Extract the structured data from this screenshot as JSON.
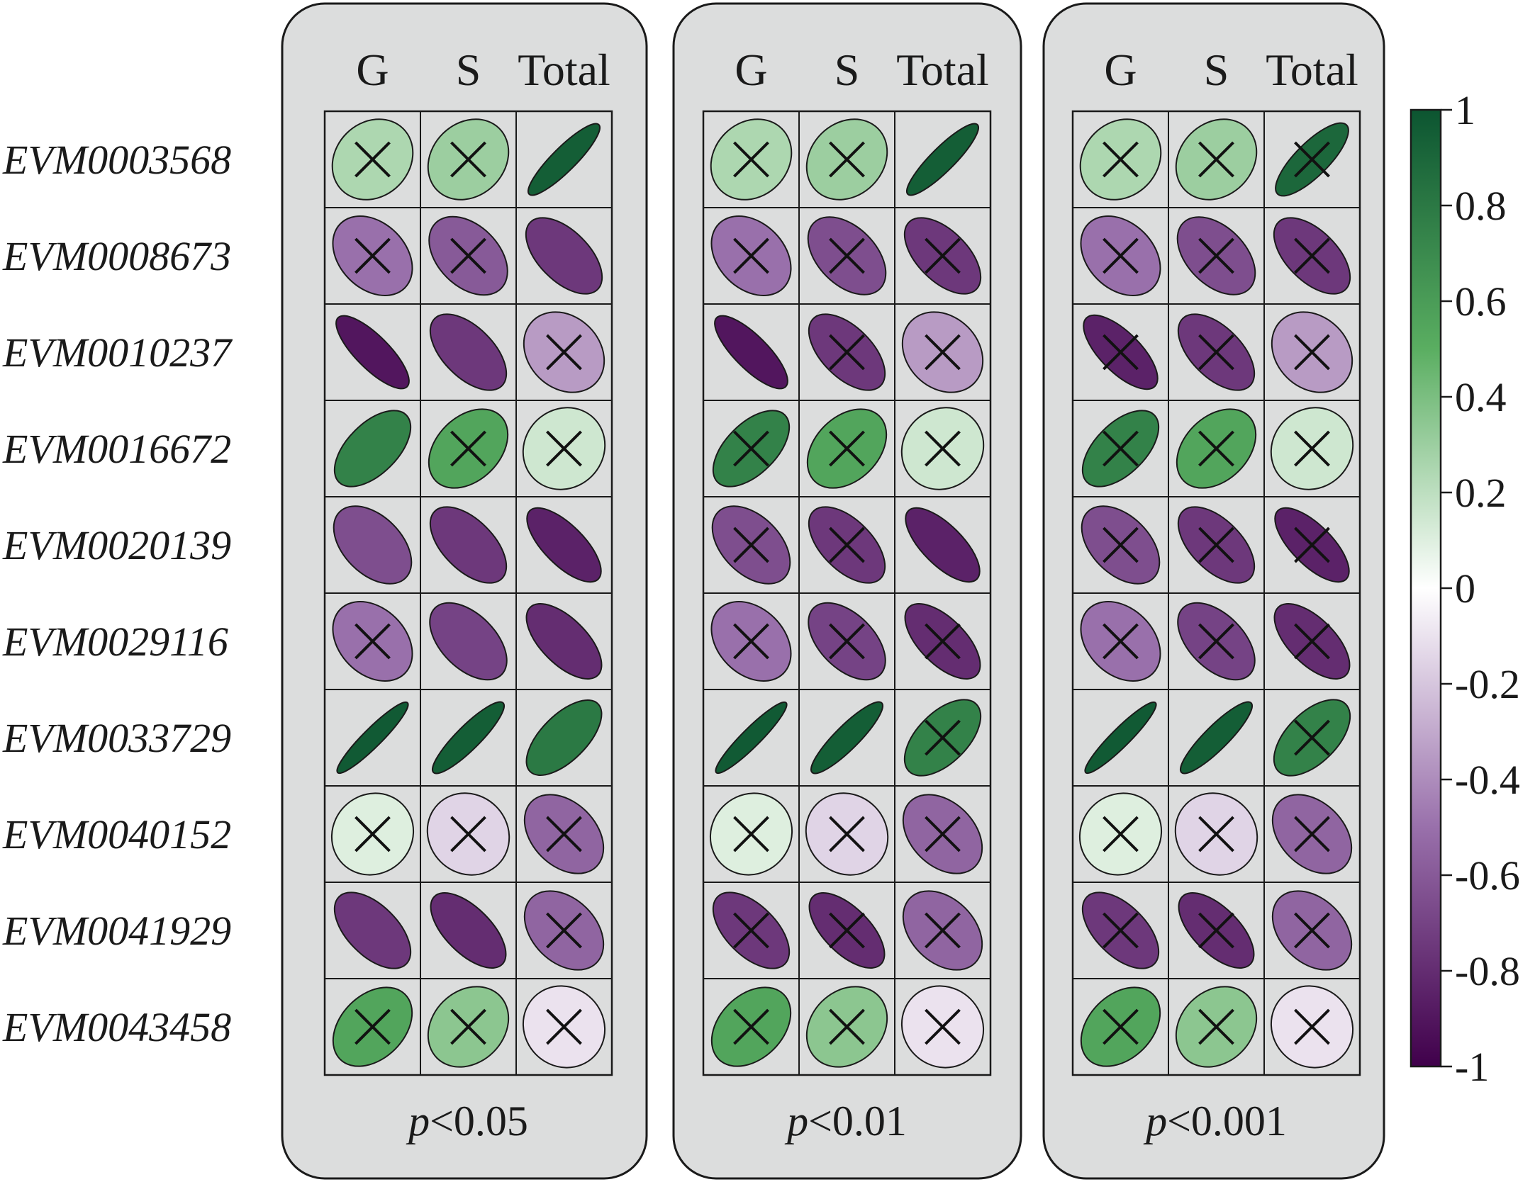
{
  "chart_data": {
    "type": "heatmap",
    "subtype": "correlation-ellipse-matrix",
    "rows": [
      "EVM0003568",
      "EVM0008673",
      "EVM0010237",
      "EVM0016672",
      "EVM0020139",
      "EVM0029116",
      "EVM0033729",
      "EVM0040152",
      "EVM0041929",
      "EVM0043458"
    ],
    "columns": [
      "G",
      "S",
      "Total"
    ],
    "panels": [
      {
        "caption_italic": "p",
        "caption_rest": "<0.05",
        "values": [
          [
            0.25,
            0.3,
            0.95
          ],
          [
            -0.5,
            -0.6,
            -0.75
          ],
          [
            -0.9,
            -0.75,
            -0.35
          ],
          [
            0.75,
            0.55,
            0.15
          ],
          [
            -0.65,
            -0.75,
            -0.85
          ],
          [
            -0.5,
            -0.7,
            -0.8
          ],
          [
            0.97,
            0.95,
            0.8
          ],
          [
            0.1,
            -0.15,
            -0.55
          ],
          [
            -0.75,
            -0.8,
            -0.55
          ],
          [
            0.55,
            0.35,
            -0.1
          ]
        ],
        "crossed": [
          [
            true,
            true,
            false
          ],
          [
            true,
            true,
            false
          ],
          [
            false,
            false,
            true
          ],
          [
            false,
            true,
            true
          ],
          [
            false,
            false,
            false
          ],
          [
            true,
            false,
            false
          ],
          [
            false,
            false,
            false
          ],
          [
            true,
            true,
            true
          ],
          [
            false,
            false,
            true
          ],
          [
            true,
            true,
            true
          ]
        ]
      },
      {
        "caption_italic": "p",
        "caption_rest": "<0.01",
        "values": [
          [
            0.25,
            0.3,
            0.95
          ],
          [
            -0.5,
            -0.65,
            -0.75
          ],
          [
            -0.9,
            -0.75,
            -0.35
          ],
          [
            0.75,
            0.55,
            0.15
          ],
          [
            -0.65,
            -0.75,
            -0.85
          ],
          [
            -0.5,
            -0.7,
            -0.8
          ],
          [
            0.97,
            0.95,
            0.75
          ],
          [
            0.1,
            -0.15,
            -0.55
          ],
          [
            -0.75,
            -0.8,
            -0.55
          ],
          [
            0.55,
            0.35,
            -0.1
          ]
        ],
        "crossed": [
          [
            true,
            true,
            false
          ],
          [
            true,
            true,
            true
          ],
          [
            false,
            true,
            true
          ],
          [
            true,
            true,
            true
          ],
          [
            true,
            true,
            false
          ],
          [
            true,
            true,
            true
          ],
          [
            false,
            false,
            true
          ],
          [
            true,
            true,
            true
          ],
          [
            true,
            true,
            true
          ],
          [
            true,
            true,
            true
          ]
        ]
      },
      {
        "caption_italic": "p",
        "caption_rest": "<0.001",
        "values": [
          [
            0.25,
            0.3,
            0.9
          ],
          [
            -0.5,
            -0.65,
            -0.75
          ],
          [
            -0.85,
            -0.75,
            -0.35
          ],
          [
            0.75,
            0.55,
            0.15
          ],
          [
            -0.65,
            -0.75,
            -0.85
          ],
          [
            -0.5,
            -0.7,
            -0.8
          ],
          [
            0.97,
            0.95,
            0.75
          ],
          [
            0.1,
            -0.15,
            -0.55
          ],
          [
            -0.75,
            -0.8,
            -0.55
          ],
          [
            0.55,
            0.35,
            -0.1
          ]
        ],
        "crossed": [
          [
            true,
            true,
            true
          ],
          [
            true,
            true,
            true
          ],
          [
            true,
            true,
            true
          ],
          [
            true,
            true,
            true
          ],
          [
            true,
            true,
            true
          ],
          [
            true,
            true,
            true
          ],
          [
            false,
            false,
            true
          ],
          [
            true,
            true,
            true
          ],
          [
            true,
            true,
            true
          ],
          [
            true,
            true,
            true
          ]
        ]
      }
    ],
    "colorbar": {
      "range": [
        -1,
        1
      ],
      "ticks": [
        "1",
        "0.8",
        "0.6",
        "0.4",
        "0.2",
        "0",
        "-0.2",
        "-0.4",
        "-0.6",
        "-0.8",
        "-1"
      ],
      "colors": {
        "positive_max": "#0c5531",
        "positive_mid": "#5aae61",
        "zero": "#ffffff",
        "negative_mid": "#9970ab",
        "negative_max": "#40004b"
      }
    },
    "panel_background": "#dcdddd"
  }
}
